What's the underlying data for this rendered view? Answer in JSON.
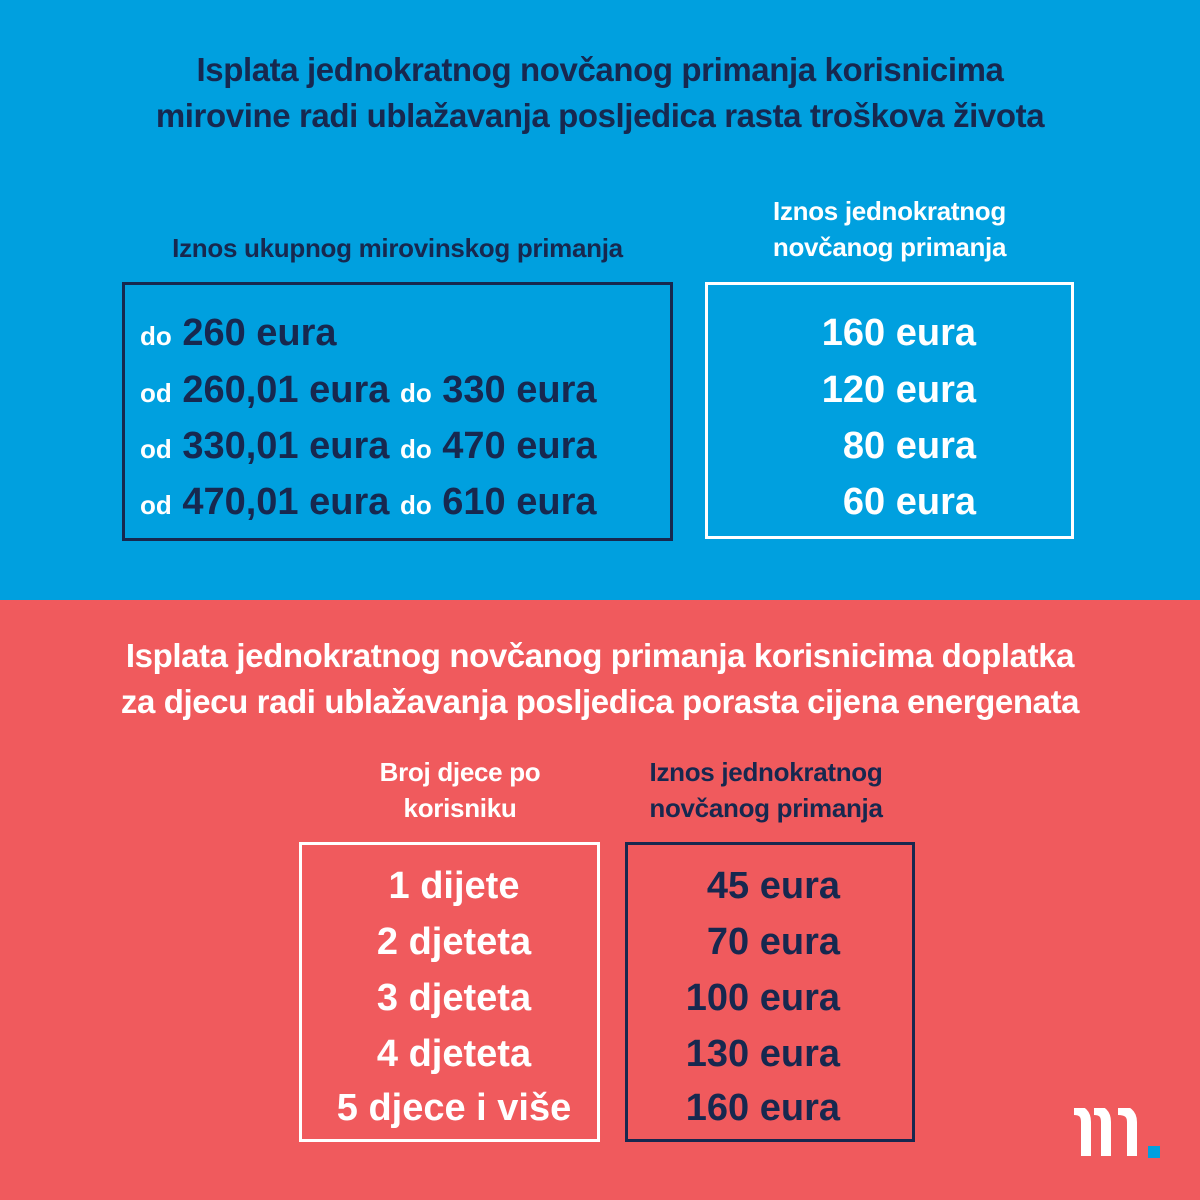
{
  "colors": {
    "top_background": "#00a0df",
    "bottom_background": "#f05a5d",
    "navy": "#17284f",
    "white": "#ffffff",
    "logo_dot": "#00a0df"
  },
  "pension": {
    "title_lines": [
      "Isplata jednokratnog novčanog primanja korisnicima",
      "mirovine radi ublažavanja posljedica rasta troškova života"
    ],
    "left_header": "Iznos ukupnog mirovinskog primanja",
    "right_header_lines": [
      "Iznos jednokratnog",
      "novčanog primanja"
    ],
    "rows": [
      {
        "from_word": "do",
        "from": "260 eura",
        "to_word": "",
        "to": "",
        "payment": "160 eura"
      },
      {
        "from_word": "od",
        "from": "260,01 eura",
        "to_word": "do",
        "to": "330 eura",
        "payment": "120 eura"
      },
      {
        "from_word": "od",
        "from": "330,01 eura",
        "to_word": "do",
        "to": "470 eura",
        "payment": "80 eura"
      },
      {
        "from_word": "od",
        "from": "470,01 eura",
        "to_word": "do",
        "to": "610 eura",
        "payment": "60 eura"
      }
    ]
  },
  "children": {
    "title_lines": [
      "Isplata jednokratnog novčanog primanja korisnicima doplatka",
      "za djecu radi ublažavanja posljedica porasta cijena energenata"
    ],
    "left_header_lines": [
      "Broj djece po",
      "korisniku"
    ],
    "right_header_lines": [
      "Iznos jednokratnog",
      "novčanog primanja"
    ],
    "rows": [
      {
        "count": "1 dijete",
        "payment": "45 eura"
      },
      {
        "count": "2 djeteta",
        "payment": "70 eura"
      },
      {
        "count": "3 djeteta",
        "payment": "100 eura"
      },
      {
        "count": "4 djeteta",
        "payment": "130 eura"
      },
      {
        "count": "5 djece i više",
        "payment": "160 eura"
      }
    ]
  },
  "logo": {
    "icon": "m-dot-logo"
  }
}
